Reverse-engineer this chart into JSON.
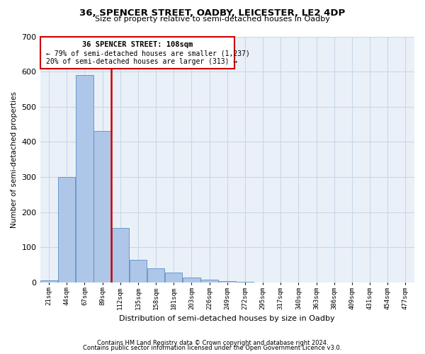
{
  "title": "36, SPENCER STREET, OADBY, LEICESTER, LE2 4DP",
  "subtitle": "Size of property relative to semi-detached houses in Oadby",
  "xlabel": "Distribution of semi-detached houses by size in Oadby",
  "ylabel": "Number of semi-detached properties",
  "footer_line1": "Contains HM Land Registry data © Crown copyright and database right 2024.",
  "footer_line2": "Contains public sector information licensed under the Open Government Licence v3.0.",
  "annotation_title": "36 SPENCER STREET: 108sqm",
  "annotation_line1": "← 79% of semi-detached houses are smaller (1,237)",
  "annotation_line2": "20% of semi-detached houses are larger (313) →",
  "categories": [
    "21sqm",
    "44sqm",
    "67sqm",
    "89sqm",
    "112sqm",
    "135sqm",
    "158sqm",
    "181sqm",
    "203sqm",
    "226sqm",
    "249sqm",
    "272sqm",
    "295sqm",
    "317sqm",
    "340sqm",
    "363sqm",
    "386sqm",
    "409sqm",
    "431sqm",
    "454sqm",
    "477sqm"
  ],
  "values": [
    5,
    300,
    590,
    430,
    155,
    65,
    40,
    28,
    13,
    7,
    3,
    1,
    0,
    0,
    0,
    0,
    0,
    0,
    0,
    0,
    0
  ],
  "highlight_bar_index": 4,
  "bar_color": "#aec6e8",
  "bar_edge_color": "#5a8fc4",
  "highlight_line_color": "#cc0000",
  "annotation_box_color": "#cc0000",
  "grid_color": "#c8d8e8",
  "bg_color": "#eaf0f8",
  "ylim": [
    0,
    700
  ],
  "yticks": [
    0,
    100,
    200,
    300,
    400,
    500,
    600,
    700
  ],
  "title_fontsize": 9.5,
  "subtitle_fontsize": 8,
  "ylabel_fontsize": 7.5,
  "xlabel_fontsize": 8
}
